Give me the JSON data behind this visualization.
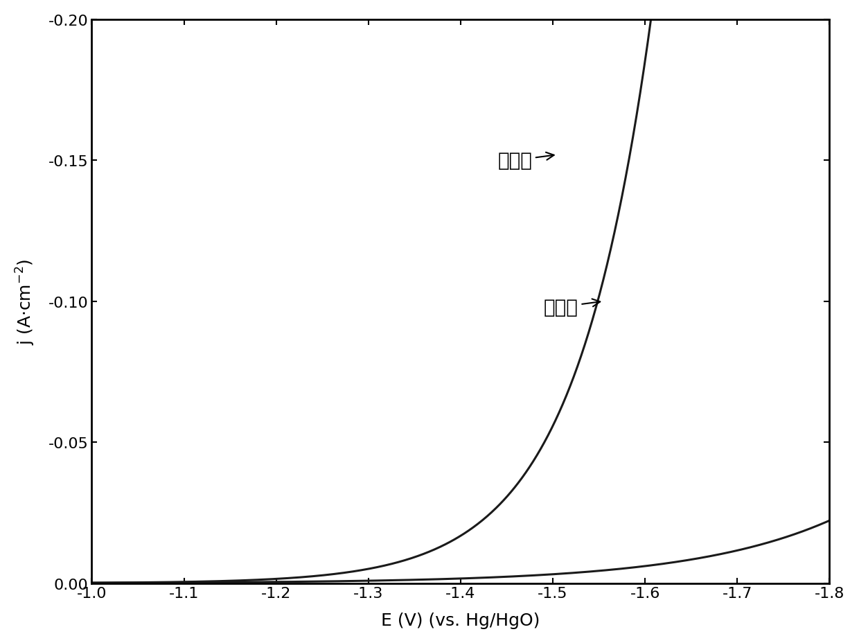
{
  "title": "",
  "xlabel": "E (V) (vs. Hg/HgO)",
  "ylabel": "j (A·cm⁻²)",
  "xlim": [
    -1.0,
    -1.8
  ],
  "ylim": [
    0.0,
    -0.2
  ],
  "xticks": [
    -1.0,
    -1.1,
    -1.2,
    -1.3,
    -1.4,
    -1.5,
    -1.6,
    -1.7,
    -1.8
  ],
  "yticks": [
    0.0,
    -0.05,
    -0.1,
    -0.15,
    -0.2
  ],
  "line_color": "#1a1a1a",
  "background_color": "#ffffff",
  "label_after": "刻蚀后",
  "label_before": "刻蚀前"
}
